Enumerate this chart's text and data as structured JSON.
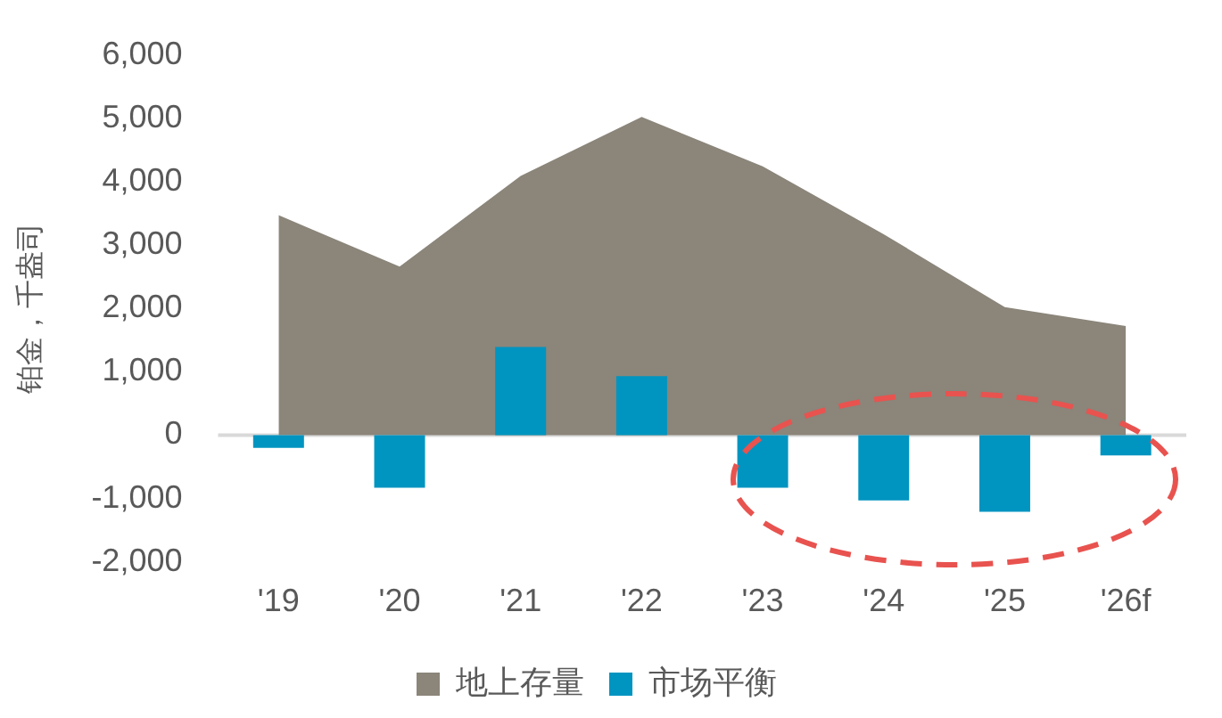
{
  "chart_data": {
    "type": "bar",
    "ylabel": "铂金，千盎司",
    "categories": [
      "'19",
      "'20",
      "'21",
      "'22",
      "'23",
      "'24",
      "'25",
      "'26f"
    ],
    "series": [
      {
        "name": "地上存量",
        "type": "area",
        "color": "#8b857a",
        "values": [
          3470,
          2660,
          4090,
          5020,
          4240,
          3170,
          2020,
          1720
        ]
      },
      {
        "name": "市场平衡",
        "color": "#0094c0",
        "values": [
          -200,
          -830,
          1390,
          930,
          -830,
          -1030,
          -1210,
          -320
        ]
      }
    ],
    "ylim": [
      -2000,
      6000
    ],
    "yticks": [
      {
        "value": -2000,
        "label": "-2,000"
      },
      {
        "value": -1000,
        "label": "-1,000"
      },
      0,
      {
        "value": 1000,
        "label": "1,000"
      },
      {
        "value": 2000,
        "label": "2,000"
      },
      {
        "value": 3000,
        "label": "3,000"
      },
      {
        "value": 4000,
        "label": "4,000"
      },
      {
        "value": 5000,
        "label": "5,000"
      },
      {
        "value": 6000,
        "label": "6,000"
      }
    ],
    "ref_lines": [
      {
        "axis": "y",
        "value": 0,
        "color": "#d9d9d9"
      }
    ],
    "legend": "bottom"
  }
}
